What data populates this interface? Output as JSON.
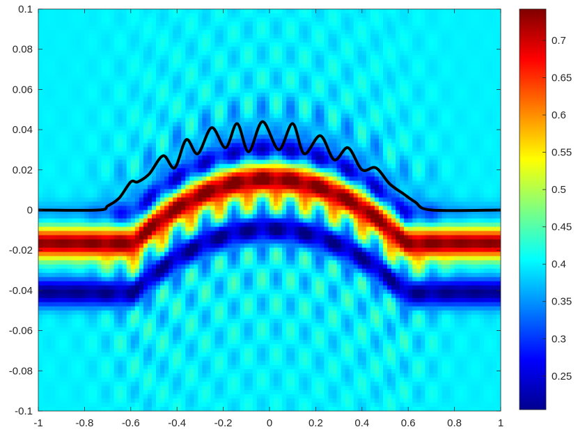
{
  "chart_data": {
    "type": "heatmap",
    "title": "",
    "xlabel": "",
    "ylabel": "",
    "xlim": [
      -1,
      1
    ],
    "ylim": [
      -0.1,
      0.1
    ],
    "x_ticks": [
      "-1",
      "-0.8",
      "-0.6",
      "-0.4",
      "-0.2",
      "0",
      "0.2",
      "0.4",
      "0.6",
      "0.8",
      "1"
    ],
    "x_tick_values": [
      -1,
      -0.8,
      -0.6,
      -0.4,
      -0.2,
      0,
      0.2,
      0.4,
      0.6,
      0.8,
      1
    ],
    "y_ticks": [
      "0.1",
      "0.08",
      "0.06",
      "0.04",
      "0.02",
      "0",
      "-0.02",
      "-0.04",
      "-0.06",
      "-0.08",
      "-0.1"
    ],
    "y_tick_values": [
      0.1,
      0.08,
      0.06,
      0.04,
      0.02,
      0,
      -0.02,
      -0.04,
      -0.06,
      -0.08,
      -0.1
    ],
    "colormap": "jet",
    "colorbar": {
      "range": [
        0.205,
        0.742
      ],
      "ticks": [
        "0.7",
        "0.65",
        "0.6",
        "0.55",
        "0.5",
        "0.45",
        "0.4",
        "0.35",
        "0.3",
        "0.25"
      ],
      "tick_values": [
        0.7,
        0.65,
        0.6,
        0.55,
        0.5,
        0.45,
        0.4,
        0.35,
        0.3,
        0.25
      ]
    },
    "grid": false,
    "surface_curve": {
      "color": "#000000",
      "x": [
        -1,
        -0.74,
        -0.7,
        -0.65,
        -0.6,
        -0.57,
        -0.52,
        -0.46,
        -0.41,
        -0.36,
        -0.31,
        -0.25,
        -0.19,
        -0.14,
        -0.09,
        -0.03,
        0.04,
        0.1,
        0.15,
        0.22,
        0.28,
        0.34,
        0.4,
        0.46,
        0.52,
        0.58,
        0.63,
        0.7,
        1
      ],
      "y": [
        0,
        0,
        0.002,
        0.006,
        0.014,
        0.014,
        0.018,
        0.027,
        0.021,
        0.035,
        0.028,
        0.041,
        0.031,
        0.043,
        0.029,
        0.044,
        0.03,
        0.043,
        0.028,
        0.037,
        0.025,
        0.031,
        0.02,
        0.021,
        0.013,
        0.008,
        0.004,
        0,
        0
      ]
    }
  }
}
